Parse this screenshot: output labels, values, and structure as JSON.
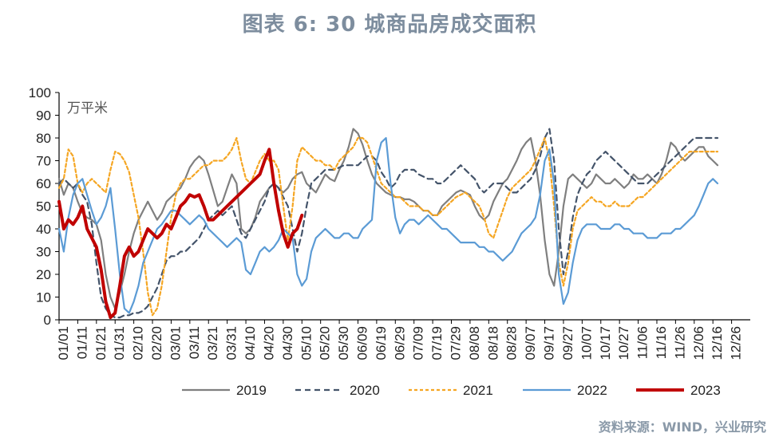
{
  "figure": {
    "title": "图表 6:  30 城商品房成交面积",
    "source": "资料来源：WIND，兴业研究"
  },
  "chart_data": {
    "type": "line",
    "unit_label": "万平米",
    "ylim": [
      0,
      100
    ],
    "yticks": [
      "0",
      "10",
      "20",
      "30",
      "40",
      "50",
      "60",
      "70",
      "80",
      "90",
      "100"
    ],
    "xticks": [
      "01/01",
      "01/11",
      "01/21",
      "01/31",
      "02/10",
      "02/20",
      "03/01",
      "03/11",
      "03/21",
      "03/31",
      "04/10",
      "04/20",
      "04/30",
      "05/10",
      "05/20",
      "05/30",
      "06/09",
      "06/19",
      "06/29",
      "07/09",
      "07/19",
      "07/29",
      "08/08",
      "08/18",
      "08/28",
      "09/07",
      "09/17",
      "09/27",
      "10/07",
      "10/17",
      "10/27",
      "11/06",
      "11/16",
      "11/26",
      "12/06",
      "12/16",
      "12/26"
    ],
    "legend_position": "bottom",
    "grid": false,
    "series": [
      {
        "name": "2019",
        "color": "#7f7f7f",
        "dash": "none",
        "width": 2.2,
        "values": [
          62,
          55,
          60,
          58,
          52,
          47,
          45,
          44,
          42,
          35,
          20,
          10,
          5,
          12,
          20,
          30,
          38,
          44,
          48,
          52,
          48,
          44,
          47,
          52,
          54,
          56,
          58,
          62,
          67,
          70,
          72,
          70,
          64,
          57,
          50,
          52,
          58,
          64,
          60,
          40,
          38,
          40,
          45,
          52,
          55,
          58,
          60,
          58,
          56,
          58,
          62,
          64,
          65,
          60,
          58,
          56,
          60,
          64,
          62,
          61,
          66,
          70,
          76,
          84,
          82,
          77,
          70,
          64,
          60,
          58,
          56,
          55,
          54,
          54,
          53,
          53,
          52,
          50,
          48,
          48,
          46,
          46,
          50,
          52,
          54,
          56,
          57,
          56,
          55,
          50,
          46,
          44,
          46,
          52,
          56,
          60,
          62,
          66,
          70,
          75,
          78,
          80,
          70,
          55,
          35,
          20,
          15,
          30,
          50,
          62,
          64,
          62,
          60,
          58,
          60,
          64,
          62,
          60,
          60,
          62,
          60,
          58,
          60,
          64,
          62,
          62,
          64,
          62,
          60,
          64,
          70,
          78,
          76,
          72,
          70,
          72,
          74,
          76,
          76,
          72,
          70,
          68
        ]
      },
      {
        "name": "2020",
        "color": "#44546a",
        "dash": "7,5",
        "width": 2.2,
        "values": [
          60,
          62,
          60,
          58,
          60,
          55,
          52,
          42,
          25,
          10,
          5,
          2,
          1,
          1,
          2,
          2,
          3,
          3,
          4,
          6,
          10,
          14,
          20,
          26,
          28,
          28,
          30,
          30,
          32,
          34,
          36,
          40,
          44,
          46,
          48,
          46,
          48,
          50,
          44,
          38,
          36,
          40,
          44,
          48,
          52,
          58,
          60,
          58,
          54,
          50,
          40,
          30,
          38,
          50,
          60,
          62,
          64,
          66,
          66,
          66,
          67,
          68,
          68,
          68,
          68,
          70,
          72,
          72,
          70,
          65,
          62,
          58,
          60,
          64,
          66,
          66,
          66,
          64,
          63,
          62,
          62,
          60,
          60,
          62,
          64,
          66,
          68,
          66,
          64,
          62,
          58,
          56,
          58,
          60,
          60,
          60,
          58,
          56,
          56,
          58,
          60,
          62,
          66,
          72,
          80,
          84,
          70,
          40,
          20,
          30,
          45,
          55,
          60,
          64,
          66,
          70,
          72,
          74,
          72,
          70,
          68,
          66,
          64,
          62,
          60,
          60,
          60,
          62,
          64,
          66,
          68,
          70,
          72,
          74,
          76,
          78,
          80,
          80,
          80,
          80,
          80,
          80
        ]
      },
      {
        "name": "2021",
        "color": "#f5a623",
        "dash": "4,3",
        "width": 2.2,
        "values": [
          58,
          62,
          75,
          72,
          60,
          56,
          60,
          62,
          60,
          58,
          56,
          66,
          74,
          73,
          70,
          65,
          55,
          45,
          30,
          12,
          2,
          5,
          15,
          30,
          45,
          55,
          60,
          62,
          62,
          64,
          66,
          68,
          68,
          70,
          70,
          70,
          72,
          75,
          80,
          70,
          62,
          60,
          65,
          70,
          73,
          70,
          70,
          66,
          50,
          35,
          50,
          70,
          76,
          74,
          72,
          70,
          70,
          68,
          68,
          66,
          70,
          72,
          74,
          76,
          80,
          80,
          78,
          72,
          66,
          60,
          58,
          56,
          54,
          54,
          52,
          50,
          50,
          50,
          48,
          48,
          46,
          46,
          48,
          50,
          52,
          54,
          55,
          56,
          54,
          52,
          50,
          45,
          38,
          36,
          42,
          48,
          54,
          58,
          60,
          62,
          64,
          66,
          70,
          75,
          80,
          70,
          50,
          25,
          15,
          25,
          40,
          48,
          50,
          52,
          54,
          52,
          52,
          50,
          50,
          52,
          50,
          50,
          50,
          52,
          54,
          54,
          56,
          58,
          60,
          62,
          64,
          66,
          68,
          70,
          72,
          74,
          74,
          74,
          74,
          74,
          74,
          74
        ]
      },
      {
        "name": "2022",
        "color": "#5b9bd5",
        "dash": "none",
        "width": 2.2,
        "values": [
          40,
          30,
          45,
          55,
          60,
          62,
          55,
          48,
          42,
          45,
          50,
          58,
          40,
          20,
          5,
          3,
          8,
          15,
          25,
          30,
          35,
          40,
          42,
          45,
          48,
          48,
          46,
          44,
          42,
          44,
          46,
          44,
          40,
          38,
          36,
          34,
          32,
          34,
          36,
          34,
          22,
          20,
          25,
          30,
          32,
          30,
          32,
          35,
          40,
          38,
          36,
          20,
          15,
          18,
          30,
          36,
          38,
          40,
          38,
          36,
          36,
          38,
          38,
          36,
          36,
          40,
          42,
          44,
          70,
          78,
          80,
          60,
          45,
          38,
          42,
          44,
          44,
          42,
          44,
          46,
          44,
          42,
          40,
          40,
          38,
          36,
          34,
          34,
          34,
          34,
          32,
          32,
          30,
          30,
          28,
          26,
          28,
          30,
          34,
          38,
          40,
          42,
          45,
          55,
          70,
          75,
          60,
          20,
          7,
          12,
          25,
          35,
          40,
          42,
          42,
          42,
          40,
          40,
          40,
          42,
          42,
          40,
          40,
          38,
          38,
          38,
          36,
          36,
          36,
          38,
          38,
          38,
          40,
          40,
          42,
          44,
          46,
          50,
          55,
          60,
          62,
          60
        ]
      },
      {
        "name": "2023",
        "color": "#c00000",
        "dash": "none",
        "width": 4,
        "values": [
          52,
          40,
          44,
          42,
          45,
          50,
          40,
          36,
          32,
          22,
          8,
          1,
          3,
          15,
          28,
          32,
          28,
          30,
          35,
          40,
          38,
          36,
          38,
          42,
          40,
          45,
          50,
          52,
          55,
          54,
          55,
          50,
          44,
          44,
          46,
          48,
          50,
          52,
          54,
          56,
          58,
          60,
          62,
          64,
          70,
          75,
          60,
          48,
          38,
          32,
          38,
          40,
          46
        ]
      }
    ]
  }
}
